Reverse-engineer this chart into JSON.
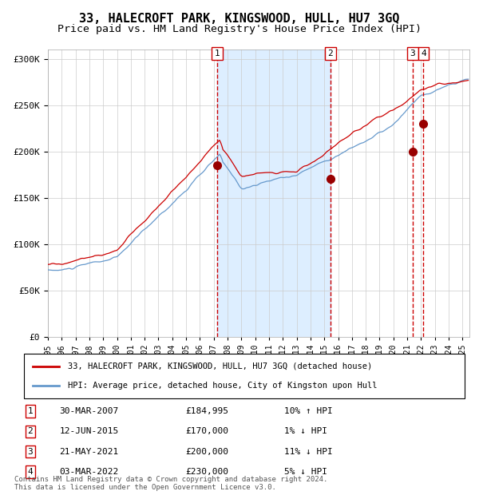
{
  "title": "33, HALECROFT PARK, KINGSWOOD, HULL, HU7 3GQ",
  "subtitle": "Price paid vs. HM Land Registry's House Price Index (HPI)",
  "legend_line1": "33, HALECROFT PARK, KINGSWOOD, HULL, HU7 3GQ (detached house)",
  "legend_line2": "HPI: Average price, detached house, City of Kingston upon Hull",
  "footer_line1": "Contains HM Land Registry data © Crown copyright and database right 2024.",
  "footer_line2": "This data is licensed under the Open Government Licence v3.0.",
  "transactions": [
    {
      "id": 1,
      "date": "30-MAR-2007",
      "price": 184995,
      "pct": "10%",
      "dir": "↑"
    },
    {
      "id": 2,
      "date": "12-JUN-2015",
      "price": 170000,
      "pct": "1%",
      "dir": "↓"
    },
    {
      "id": 3,
      "date": "21-MAY-2021",
      "price": 200000,
      "pct": "11%",
      "dir": "↓"
    },
    {
      "id": 4,
      "date": "03-MAR-2022",
      "price": 230000,
      "pct": "5%",
      "dir": "↓"
    }
  ],
  "transaction_dates_decimal": [
    2007.247,
    2015.443,
    2021.387,
    2022.17
  ],
  "shaded_region": [
    2007.247,
    2015.443
  ],
  "ylim": [
    0,
    310000
  ],
  "yticks": [
    0,
    50000,
    100000,
    150000,
    200000,
    250000,
    300000
  ],
  "ytick_labels": [
    "£0",
    "£50K",
    "£100K",
    "£150K",
    "£200K",
    "£250K",
    "£300K"
  ],
  "xlim_start": 1995.0,
  "xlim_end": 2025.5,
  "red_line_color": "#cc0000",
  "blue_line_color": "#6699cc",
  "shaded_color": "#ddeeff",
  "dot_color": "#990000",
  "dashed_color": "#cc0000",
  "grid_color": "#cccccc",
  "bg_color": "#ffffff",
  "title_fontsize": 11,
  "subtitle_fontsize": 9.5
}
